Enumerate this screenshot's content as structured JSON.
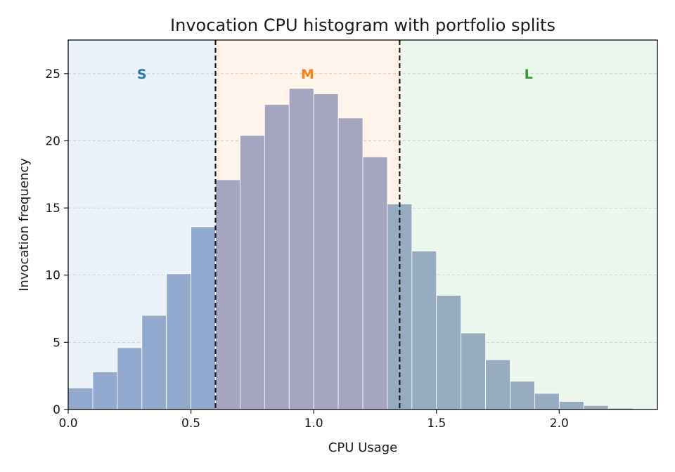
{
  "chart_data": {
    "type": "bar",
    "title": "Invocation CPU histogram with portfolio splits",
    "xlabel": "CPU Usage",
    "ylabel": "Invocation frequency",
    "xlim": [
      0.0,
      2.4
    ],
    "ylim": [
      0,
      27.5
    ],
    "xticks": [
      0.0,
      0.5,
      1.0,
      1.5,
      2.0
    ],
    "xtick_labels": [
      "0.0",
      "0.5",
      "1.0",
      "1.5",
      "2.0"
    ],
    "yticks": [
      0,
      5,
      10,
      15,
      20,
      25
    ],
    "ytick_labels": [
      "0",
      "5",
      "10",
      "15",
      "20",
      "25"
    ],
    "grid": "horizontal dashed",
    "bin_width": 0.1,
    "bin_starts": [
      0.0,
      0.1,
      0.2,
      0.3,
      0.4,
      0.5,
      0.6,
      0.7,
      0.8,
      0.9,
      1.0,
      1.1,
      1.2,
      1.3,
      1.4,
      1.5,
      1.6,
      1.7,
      1.8,
      1.9,
      2.0,
      2.1,
      2.2
    ],
    "values": [
      1.6,
      2.8,
      4.6,
      7.0,
      10.1,
      13.6,
      17.1,
      20.4,
      22.7,
      23.9,
      23.5,
      21.7,
      18.8,
      15.3,
      11.8,
      8.5,
      5.7,
      3.7,
      2.1,
      1.2,
      0.6,
      0.3,
      0.1
    ],
    "splits": [
      0.6,
      1.35
    ],
    "regions": [
      {
        "label": "S",
        "from": 0.0,
        "to": 0.6,
        "label_color": "#1f77b4",
        "shade": "#eaf1f8",
        "bar_color": "#94a9ce"
      },
      {
        "label": "M",
        "from": 0.6,
        "to": 1.35,
        "label_color": "#ff7f0e",
        "shade": "#fff3ea",
        "bar_color": "#a5a5c0"
      },
      {
        "label": "L",
        "from": 1.35,
        "to": 2.4,
        "label_color": "#2ca02c",
        "shade": "#edf6ed",
        "bar_color": "#97acbf"
      }
    ],
    "region_label_y": 25
  }
}
